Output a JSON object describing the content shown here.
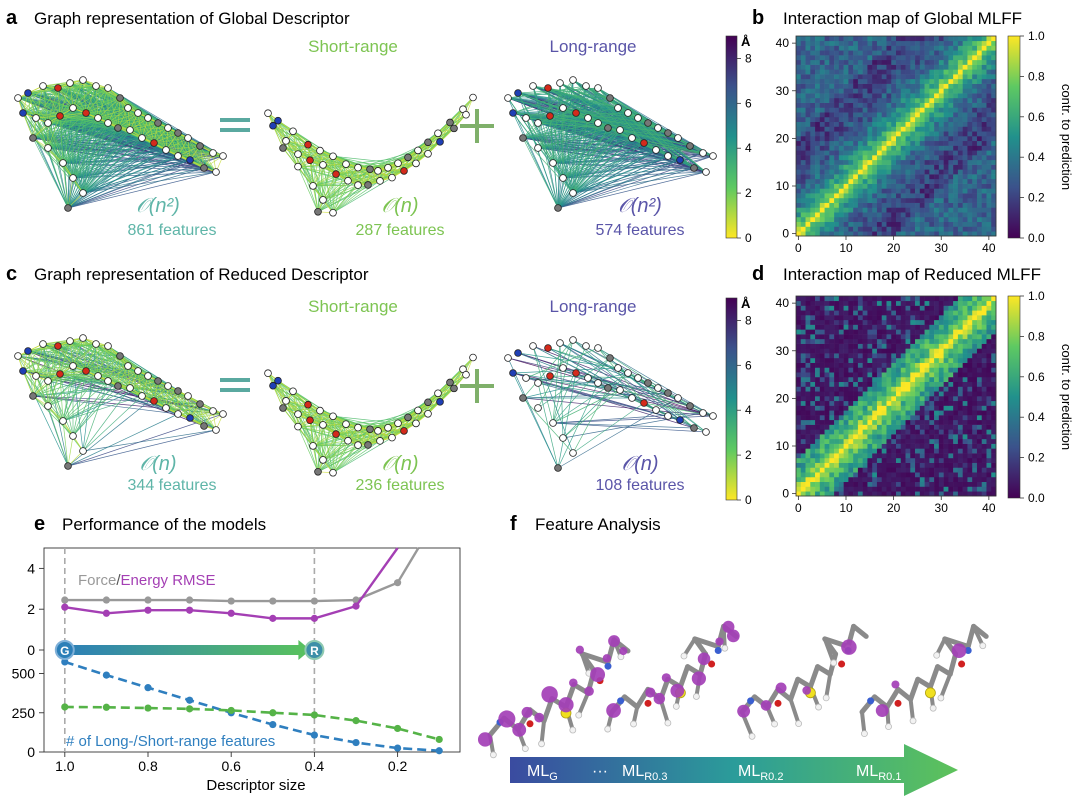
{
  "panels": {
    "a": {
      "letter": "a",
      "title": "Graph representation of Global Descriptor",
      "short_label": "Short-range",
      "long_label": "Long-range",
      "left_complexity": "𝒪(n²)",
      "left_count": "861 features",
      "mid_complexity": "𝒪(n)",
      "mid_count": "287 features",
      "right_complexity": "𝒪(n²)",
      "right_count": "574 features",
      "colorbar_unit": "Å",
      "colorbar_ticks": [
        "0",
        "2",
        "4",
        "6",
        "8"
      ]
    },
    "b": {
      "letter": "b",
      "title": "Interaction map of Global MLFF",
      "cbar_label": "contr. to prediction",
      "cbar_ticks": [
        "0.0",
        "0.2",
        "0.4",
        "0.6",
        "0.8",
        "1.0"
      ],
      "x_ticks": [
        "0",
        "10",
        "20",
        "30",
        "40"
      ],
      "y_ticks": [
        "0",
        "10",
        "20",
        "30",
        "40"
      ]
    },
    "c": {
      "letter": "c",
      "title": "Graph representation of Reduced Descriptor",
      "short_label": "Short-range",
      "long_label": "Long-range",
      "left_complexity": "𝒪(n)",
      "left_count": "344 features",
      "mid_complexity": "𝒪(n)",
      "mid_count": "236 features",
      "right_complexity": "𝒪(n)",
      "right_count": "108 features",
      "colorbar_unit": "Å",
      "colorbar_ticks": [
        "0",
        "2",
        "4",
        "6",
        "8"
      ]
    },
    "d": {
      "letter": "d",
      "title": "Interaction map of Reduced MLFF",
      "cbar_label": "contr. to prediction",
      "cbar_ticks": [
        "0.0",
        "0.2",
        "0.4",
        "0.6",
        "0.8",
        "1.0"
      ],
      "x_ticks": [
        "0",
        "10",
        "20",
        "30",
        "40"
      ],
      "y_ticks": [
        "0",
        "10",
        "20",
        "30",
        "40"
      ]
    },
    "e": {
      "letter": "e",
      "title": "Performance of the models",
      "legend_force": "Force",
      "legend_slash": "/",
      "legend_energy": "Energy RMSE",
      "features_legend": "# of Long-/Short-range features",
      "marker_g": "G",
      "marker_r": "R",
      "xlabel": "Descriptor size"
    },
    "f": {
      "letter": "f",
      "title": "Feature Analysis",
      "arrow_labels": [
        {
          "base": "ML",
          "sub": "G"
        },
        {
          "base": "···",
          "sub": ""
        },
        {
          "base": "ML",
          "sub": "R0.3"
        },
        {
          "base": "ML",
          "sub": "R0.2"
        },
        {
          "base": "ML",
          "sub": "R0.1"
        }
      ]
    }
  },
  "colors": {
    "force": "#999999",
    "energy": "#a43fb4",
    "long_features": "#2f7fbf",
    "short_features": "#55b347",
    "short_text": "#7dc452",
    "long_text": "#5a55a8",
    "teal_text": "#5fb5a8"
  },
  "chart_data": {
    "type": "line",
    "xlabel": "Descriptor size",
    "x_ticks": [
      "1.0",
      "0.8",
      "0.6",
      "0.4",
      "0.2"
    ],
    "upper_panel": {
      "ylim": [
        0,
        5
      ],
      "y_ticks": [
        "0",
        "2",
        "4"
      ],
      "series": [
        {
          "name": "Force RMSE",
          "x": [
            1.0,
            0.9,
            0.8,
            0.7,
            0.6,
            0.5,
            0.4,
            0.3,
            0.2,
            0.15
          ],
          "y": [
            2.45,
            2.45,
            2.45,
            2.45,
            2.4,
            2.4,
            2.4,
            2.45,
            3.3,
            5.2
          ]
        },
        {
          "name": "Energy RMSE",
          "x": [
            1.0,
            0.9,
            0.8,
            0.7,
            0.6,
            0.5,
            0.4,
            0.3,
            0.2
          ],
          "y": [
            2.1,
            1.8,
            1.95,
            1.95,
            1.8,
            1.55,
            1.55,
            2.15,
            5.2
          ]
        }
      ]
    },
    "lower_panel": {
      "ylim": [
        0,
        650
      ],
      "y_ticks": [
        "0",
        "250",
        "500"
      ],
      "series": [
        {
          "name": "Long-range features",
          "x": [
            1.0,
            0.9,
            0.8,
            0.7,
            0.6,
            0.5,
            0.4,
            0.3,
            0.2,
            0.1
          ],
          "y": [
            574,
            490,
            410,
            330,
            250,
            175,
            108,
            60,
            25,
            8
          ]
        },
        {
          "name": "Short-range features",
          "x": [
            1.0,
            0.9,
            0.8,
            0.7,
            0.6,
            0.5,
            0.4,
            0.3,
            0.2,
            0.1
          ],
          "y": [
            287,
            285,
            280,
            275,
            265,
            250,
            236,
            200,
            150,
            80
          ]
        }
      ]
    },
    "vertical_markers": [
      1.0,
      0.4
    ]
  }
}
